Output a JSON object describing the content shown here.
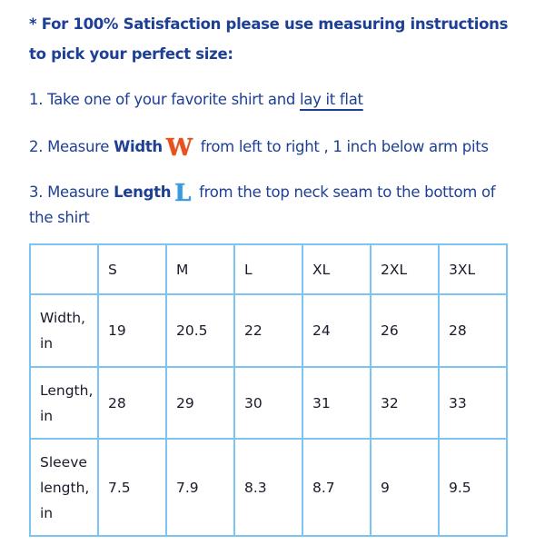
{
  "intro": {
    "line1": "* For 100% Satisfaction please use measuring instructions",
    "line2": "to pick your perfect size:"
  },
  "steps": [
    {
      "prefix": "1. Take one of your favorite shirt and ",
      "link": "lay it flat"
    },
    {
      "prefix": "2. Measure ",
      "bold": "Width",
      "glyph": "W",
      "suffix": " from left to right , 1 inch below arm pits"
    },
    {
      "prefix": "3. Measure ",
      "bold": "Length",
      "glyph": "L",
      "suffix": " from the top neck seam to the bottom of",
      "continuation": "the shirt"
    }
  ],
  "table": {
    "headers": [
      "",
      "S",
      "M",
      "L",
      "XL",
      "2XL",
      "3XL"
    ],
    "rows": [
      {
        "label": "Width, in",
        "values": [
          "19",
          "20.5",
          "22",
          "24",
          "26",
          "28"
        ]
      },
      {
        "label": "Length, in",
        "values": [
          "28",
          "29",
          "30",
          "31",
          "32",
          "33"
        ]
      },
      {
        "label": "Sleeve length, in",
        "values": [
          "7.5",
          "7.9",
          "8.3",
          "8.7",
          "9",
          "9.5"
        ]
      }
    ]
  },
  "colors": {
    "text": "#1d3f94",
    "border": "#7cc4f2",
    "width_glyph": "#e8501c",
    "length_glyph": "#3a9ae0"
  }
}
